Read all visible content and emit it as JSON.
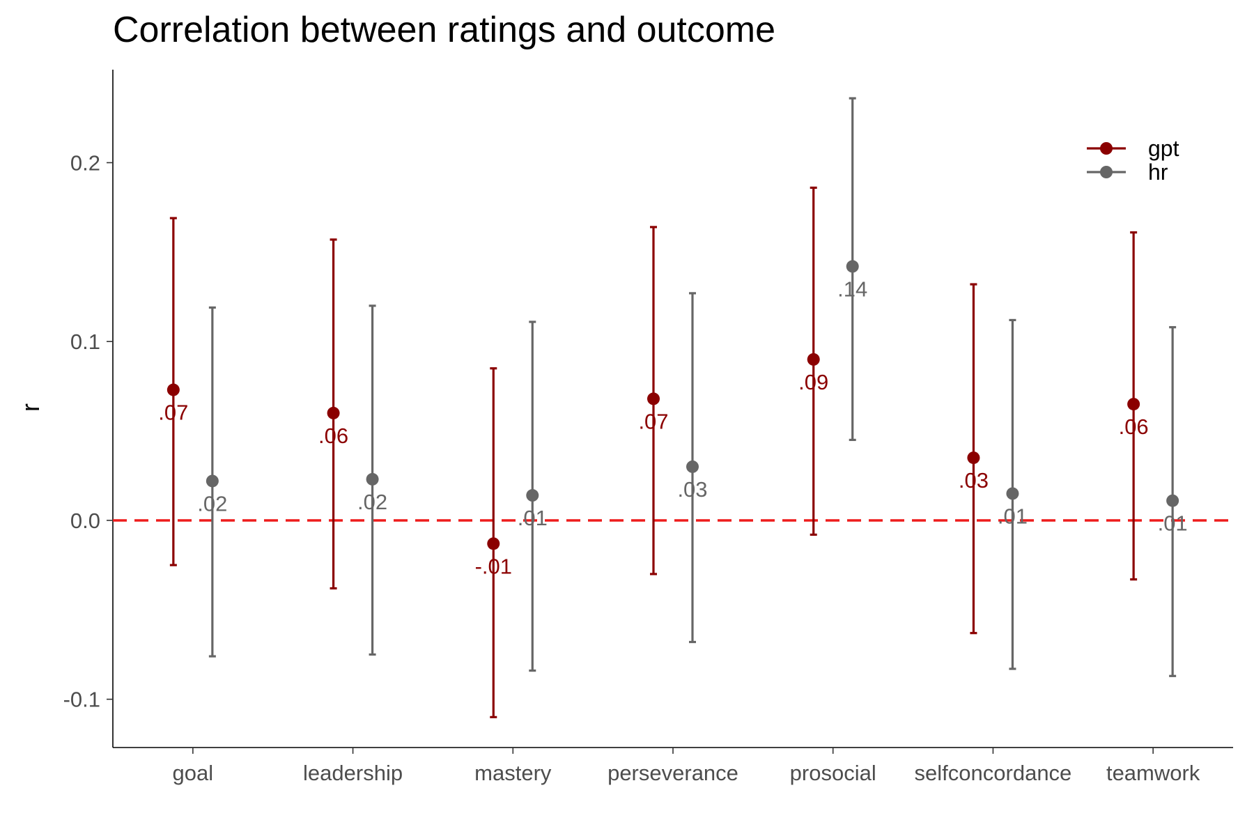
{
  "chart_data": {
    "type": "scatter",
    "title": "Correlation between ratings and outcome",
    "xlabel": "",
    "ylabel": "r",
    "categories": [
      "goal",
      "leadership",
      "mastery",
      "perseverance",
      "prosocial",
      "selfconcordance",
      "teamwork"
    ],
    "ylim": [
      -0.127,
      0.252
    ],
    "yticks": [
      -0.1,
      0.0,
      0.1,
      0.2
    ],
    "ytick_labels": [
      "-0.1",
      "0.0",
      "0.1",
      "0.2"
    ],
    "reference_line": {
      "y": 0,
      "style": "dashed",
      "color": "#ee1c1c"
    },
    "grid": false,
    "legend_position": "top-right",
    "series": [
      {
        "name": "gpt",
        "color": "#8b0000",
        "values": [
          0.073,
          0.06,
          -0.013,
          0.068,
          0.09,
          0.035,
          0.065
        ],
        "lower": [
          -0.025,
          -0.038,
          -0.11,
          -0.03,
          -0.008,
          -0.063,
          -0.033
        ],
        "upper": [
          0.169,
          0.157,
          0.085,
          0.164,
          0.186,
          0.132,
          0.161
        ],
        "labels": [
          ".07",
          ".06",
          "-.01",
          ".07",
          ".09",
          ".03",
          ".06"
        ]
      },
      {
        "name": "hr",
        "color": "#666666",
        "values": [
          0.022,
          0.023,
          0.014,
          0.03,
          0.142,
          0.015,
          0.011
        ],
        "lower": [
          -0.076,
          -0.075,
          -0.084,
          -0.068,
          0.045,
          -0.083,
          -0.087
        ],
        "upper": [
          0.119,
          0.12,
          0.111,
          0.127,
          0.236,
          0.112,
          0.108
        ],
        "labels": [
          ".02",
          ".02",
          ".01",
          ".03",
          ".14",
          ".01",
          ".01"
        ]
      }
    ]
  }
}
